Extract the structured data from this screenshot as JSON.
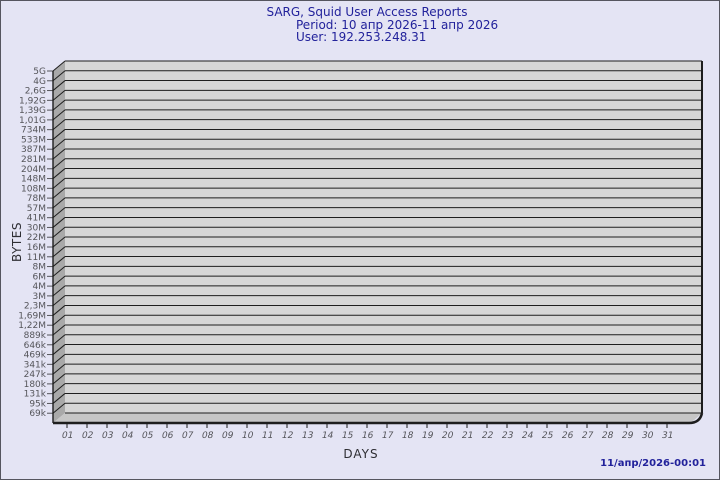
{
  "footer": {
    "timestamp": "11/апр/2026-00:01"
  },
  "colors": {
    "background": "#e4e4f4",
    "border": "#55555f",
    "title_text": "#22229b",
    "axis_title_text": "#2e2e33",
    "tick_text": "#55555a",
    "plot_back": "#d6d6d6",
    "plot_side": "#a9a9a9",
    "plot_floor": "#c6c6c6",
    "grid_line": "#1e1e1e",
    "timestamp_text": "#22229b"
  },
  "chart_data": {
    "type": "bar",
    "style": "3d",
    "title": "SARG, Squid User Access Reports",
    "subtitle_period": "Period: 10 апр 2026-11 апр 2026",
    "subtitle_user": "User: 192.253.248.31",
    "xlabel": "DAYS",
    "ylabel": "BYTES",
    "grid": true,
    "legend": null,
    "no_data_plotted": true,
    "y_axis_range_labels": [
      "69k",
      "5G"
    ],
    "y_tick_labels": [
      "5G",
      "4G",
      "2,6G",
      "1,92G",
      "1,39G",
      "1,01G",
      "734M",
      "533M",
      "387M",
      "281M",
      "204M",
      "148M",
      "108M",
      "78M",
      "57M",
      "41M",
      "30M",
      "22M",
      "16M",
      "11M",
      "8M",
      "6M",
      "4M",
      "3M",
      "2,3M",
      "1,69M",
      "1,22M",
      "889k",
      "646k",
      "469k",
      "341k",
      "247k",
      "180k",
      "131k",
      "95k",
      "69k"
    ],
    "categories": [
      "01",
      "02",
      "03",
      "04",
      "05",
      "06",
      "07",
      "08",
      "09",
      "10",
      "11",
      "12",
      "13",
      "14",
      "15",
      "16",
      "17",
      "18",
      "19",
      "20",
      "21",
      "22",
      "23",
      "24",
      "25",
      "26",
      "27",
      "28",
      "29",
      "30",
      "31"
    ],
    "values": [
      0,
      0,
      0,
      0,
      0,
      0,
      0,
      0,
      0,
      0,
      0,
      0,
      0,
      0,
      0,
      0,
      0,
      0,
      0,
      0,
      0,
      0,
      0,
      0,
      0,
      0,
      0,
      0,
      0,
      0,
      0
    ]
  }
}
